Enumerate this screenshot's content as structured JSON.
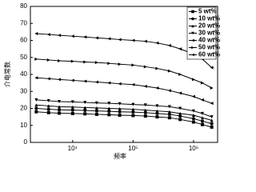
{
  "chart_data": {
    "type": "line",
    "xlabel": "频率",
    "ylabel": "介电常数",
    "xscale": "log",
    "xlim": [
      2000,
      2500000
    ],
    "ylim": [
      0,
      80
    ],
    "xticks": [
      {
        "value": 10000,
        "label": "10⁴"
      },
      {
        "value": 100000,
        "label": "10⁵"
      },
      {
        "value": 1000000,
        "label": "10⁶"
      }
    ],
    "yticks": [
      0,
      10,
      20,
      30,
      40,
      50,
      60,
      70,
      80
    ],
    "legend": "top-right",
    "x": [
      2500,
      4000,
      6000,
      10000,
      16000,
      25000,
      40000,
      60000,
      100000,
      160000,
      250000,
      400000,
      600000,
      1000000,
      1400000,
      2000000
    ],
    "series": [
      {
        "name": "5 wt%",
        "color": "#000000",
        "marker": "square",
        "values": [
          18,
          17.5,
          17.2,
          17,
          16.8,
          16.5,
          16.3,
          16,
          15.8,
          15.5,
          15,
          14.5,
          13.5,
          12,
          10.5,
          9
        ]
      },
      {
        "name": "10 wt%",
        "color": "#000000",
        "marker": "circle",
        "values": [
          20,
          19.5,
          19.2,
          19,
          18.8,
          18.5,
          18.3,
          18,
          17.8,
          17.5,
          17,
          16.5,
          15.5,
          14,
          12.5,
          11
        ]
      },
      {
        "name": "20 wt%",
        "color": "#000000",
        "marker": "up",
        "values": [
          22,
          21.5,
          21,
          20.8,
          20.5,
          20.3,
          20,
          19.8,
          19.5,
          19,
          18.5,
          18,
          17,
          16,
          14.5,
          13
        ]
      },
      {
        "name": "30 wt%",
        "color": "#000000",
        "marker": "down",
        "values": [
          25,
          24.5,
          24,
          23.8,
          23.5,
          23.2,
          23,
          22.7,
          22.3,
          22,
          21.5,
          21,
          20,
          18.5,
          17,
          15
        ]
      },
      {
        "name": "40 wt%",
        "color": "#000000",
        "marker": "left",
        "values": [
          38,
          37.5,
          37,
          36.5,
          36,
          35.5,
          35,
          34.5,
          34,
          33,
          32,
          30.5,
          29,
          27,
          25,
          23
        ]
      },
      {
        "name": "50 wt%",
        "color": "#000000",
        "marker": "right",
        "values": [
          49,
          48.5,
          48,
          47.7,
          47.3,
          47,
          46.5,
          46,
          45.5,
          44.5,
          43.5,
          42,
          40,
          37,
          35,
          32
        ]
      },
      {
        "name": "60 wt%",
        "color": "#000000",
        "marker": "left",
        "values": [
          64,
          63.5,
          63,
          62.5,
          62,
          61.5,
          61,
          60.5,
          60,
          59.5,
          58.5,
          57,
          55,
          52,
          49,
          44
        ]
      }
    ]
  }
}
